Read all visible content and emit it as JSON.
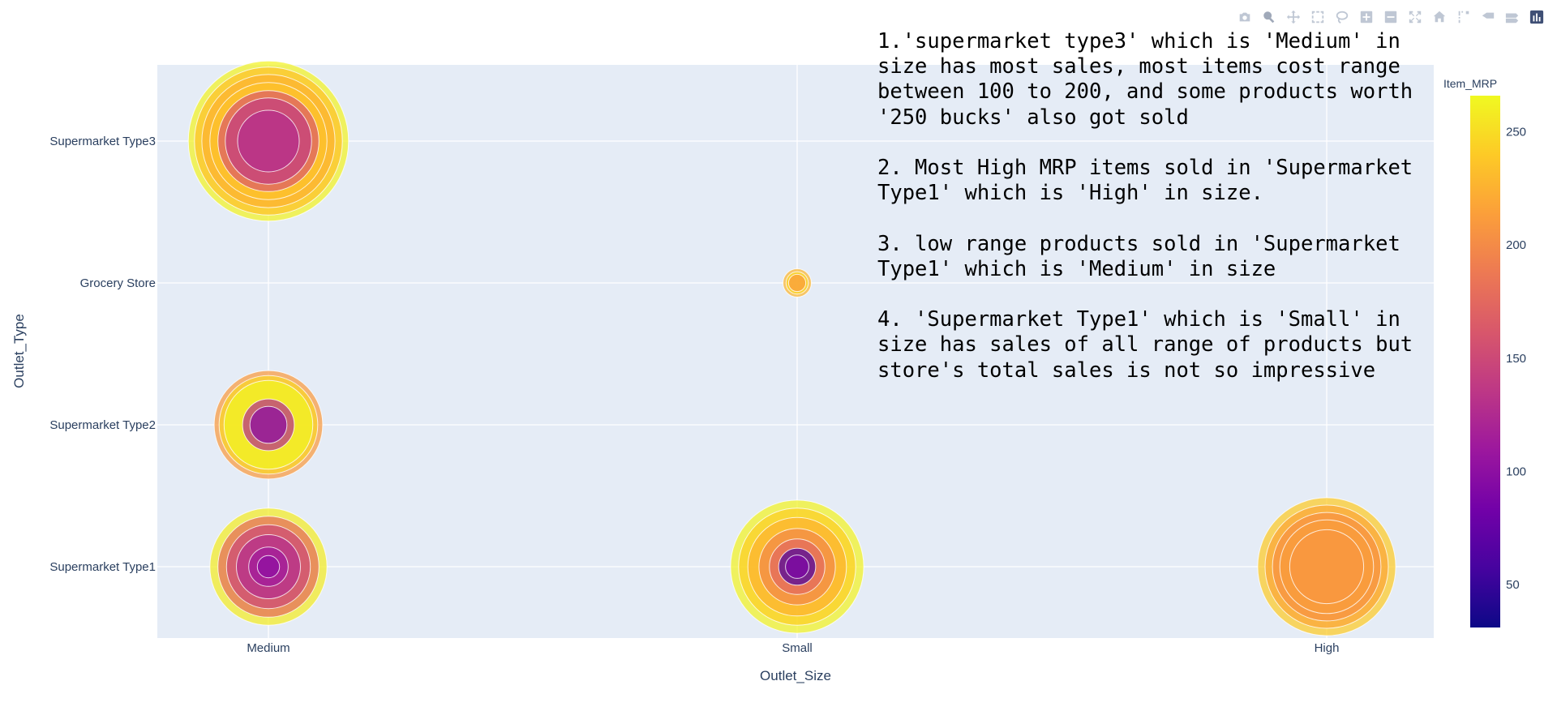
{
  "chart_data": {
    "type": "scatter",
    "title": "",
    "xlabel": "Outlet_Size",
    "ylabel": "Outlet_Type",
    "x_categories": [
      "Medium",
      "Small",
      "High"
    ],
    "y_categories": [
      "Supermarket Type1",
      "Supermarket Type2",
      "Grocery Store",
      "Supermarket Type3"
    ],
    "colorbar": {
      "title": "Item_MRP",
      "range": [
        31,
        266
      ],
      "ticks": [
        50,
        100,
        150,
        200,
        250
      ]
    },
    "grid": true,
    "legend": "colorbar-right",
    "colorscale": [
      "#0d0887",
      "#46039f",
      "#7201a8",
      "#9c179e",
      "#bd3786",
      "#d8576b",
      "#ed7953",
      "#fb9f3a",
      "#fdca26",
      "#f0f921"
    ],
    "points": [
      {
        "x": "Medium",
        "y": "Supermarket Type3",
        "mrp": 262,
        "sales": 13.0
      },
      {
        "x": "Medium",
        "y": "Supermarket Type3",
        "mrp": 235,
        "sales": 12.0
      },
      {
        "x": "Medium",
        "y": "Supermarket Type3",
        "mrp": 225,
        "sales": 10.8
      },
      {
        "x": "Medium",
        "y": "Supermarket Type3",
        "mrp": 235,
        "sales": 9.5
      },
      {
        "x": "Medium",
        "y": "Supermarket Type3",
        "mrp": 165,
        "sales": 8.2
      },
      {
        "x": "Medium",
        "y": "Supermarket Type3",
        "mrp": 140,
        "sales": 7.0
      },
      {
        "x": "Medium",
        "y": "Supermarket Type3",
        "mrp": 128,
        "sales": 5.0
      },
      {
        "x": "Small",
        "y": "Grocery Store",
        "mrp": 228,
        "sales": 2.3
      },
      {
        "x": "Small",
        "y": "Grocery Store",
        "mrp": 246,
        "sales": 1.8
      },
      {
        "x": "Small",
        "y": "Grocery Store",
        "mrp": 212,
        "sales": 1.4
      },
      {
        "x": "Medium",
        "y": "Supermarket Type2",
        "mrp": 210,
        "sales": 8.8
      },
      {
        "x": "Medium",
        "y": "Supermarket Type2",
        "mrp": 246,
        "sales": 8.0
      },
      {
        "x": "Medium",
        "y": "Supermarket Type2",
        "mrp": 264,
        "sales": 7.2
      },
      {
        "x": "Medium",
        "y": "Supermarket Type2",
        "mrp": 130,
        "sales": 4.2
      },
      {
        "x": "Medium",
        "y": "Supermarket Type2",
        "mrp": 98,
        "sales": 3.0
      },
      {
        "x": "Medium",
        "y": "Supermarket Type1",
        "mrp": 258,
        "sales": 9.5
      },
      {
        "x": "Medium",
        "y": "Supermarket Type1",
        "mrp": 178,
        "sales": 8.2
      },
      {
        "x": "Medium",
        "y": "Supermarket Type1",
        "mrp": 150,
        "sales": 6.8
      },
      {
        "x": "Medium",
        "y": "Supermarket Type1",
        "mrp": 128,
        "sales": 5.2
      },
      {
        "x": "Medium",
        "y": "Supermarket Type1",
        "mrp": 112,
        "sales": 3.2
      },
      {
        "x": "Medium",
        "y": "Supermarket Type1",
        "mrp": 100,
        "sales": 1.8
      },
      {
        "x": "Small",
        "y": "Supermarket Type1",
        "mrp": 262,
        "sales": 10.8
      },
      {
        "x": "Small",
        "y": "Supermarket Type1",
        "mrp": 242,
        "sales": 9.5
      },
      {
        "x": "Small",
        "y": "Supermarket Type1",
        "mrp": 226,
        "sales": 8.0
      },
      {
        "x": "Small",
        "y": "Supermarket Type1",
        "mrp": 198,
        "sales": 6.2
      },
      {
        "x": "Small",
        "y": "Supermarket Type1",
        "mrp": 175,
        "sales": 4.5
      },
      {
        "x": "Small",
        "y": "Supermarket Type1",
        "mrp": 60,
        "sales": 3.0
      },
      {
        "x": "Small",
        "y": "Supermarket Type1",
        "mrp": 90,
        "sales": 1.9
      },
      {
        "x": "High",
        "y": "Supermarket Type1",
        "mrp": 240,
        "sales": 11.2
      },
      {
        "x": "High",
        "y": "Supermarket Type1",
        "mrp": 218,
        "sales": 10.0
      },
      {
        "x": "High",
        "y": "Supermarket Type1",
        "mrp": 205,
        "sales": 8.8
      },
      {
        "x": "High",
        "y": "Supermarket Type1",
        "mrp": 212,
        "sales": 7.6
      },
      {
        "x": "High",
        "y": "Supermarket Type1",
        "mrp": 208,
        "sales": 6.0
      }
    ],
    "annotation": "1.'supermarket type3' which is 'Medium' in\nsize has most sales, most items cost range\nbetween 100 to 200, and some products worth\n'250 bucks' also got sold\n\n2. Most High MRP items sold in 'Supermarket\nType1' which is 'High' in size.\n\n3. low range products sold in 'Supermarket\nType1' which is 'Medium' in size\n\n4. 'Supermarket Type1' which is 'Small' in\nsize has sales of all range of products but\nstore's total sales is not so impressive"
  },
  "modebar": {
    "buttons": [
      {
        "name": "camera-icon",
        "active": false
      },
      {
        "name": "zoom-icon",
        "active": true
      },
      {
        "name": "pan-icon",
        "active": false
      },
      {
        "name": "box-select-icon",
        "active": false
      },
      {
        "name": "lasso-select-icon",
        "active": false
      },
      {
        "name": "zoom-in-icon",
        "active": false
      },
      {
        "name": "zoom-out-icon",
        "active": false
      },
      {
        "name": "autoscale-icon",
        "active": false
      },
      {
        "name": "home-icon",
        "active": false
      },
      {
        "name": "spike-lines-icon",
        "active": false
      },
      {
        "name": "hover-closest-icon",
        "active": false
      },
      {
        "name": "hover-compare-icon",
        "active": false
      },
      {
        "name": "plotly-logo-icon",
        "active": false
      }
    ]
  }
}
